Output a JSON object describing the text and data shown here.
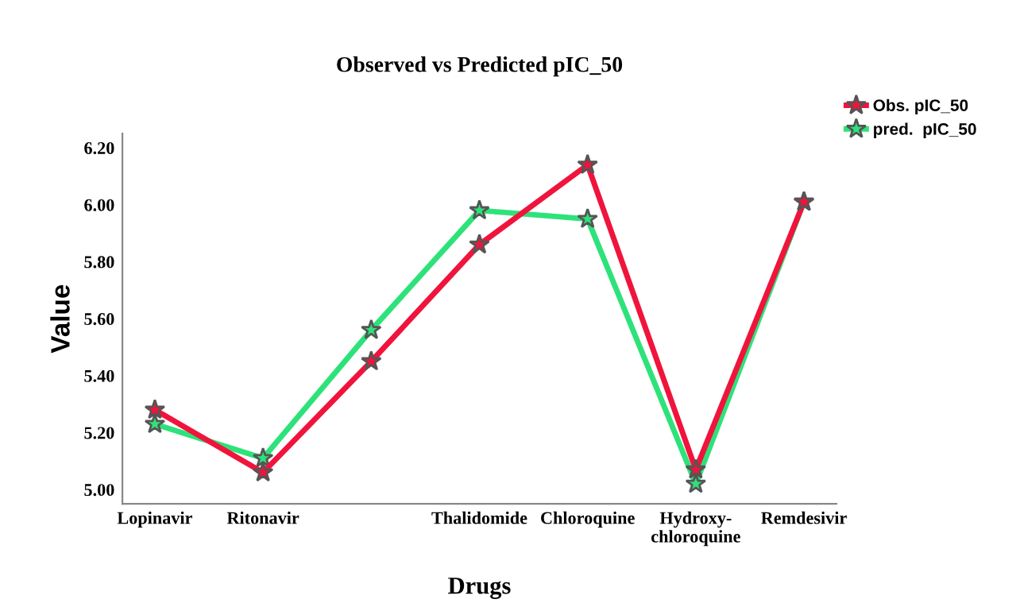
{
  "chart_data": {
    "type": "line",
    "title": "Observed vs Predicted pIC_50",
    "xlabel": "Drugs",
    "ylabel": "Value",
    "categories": [
      "Lopinavir",
      "Ritonavir",
      null,
      "Thalidomide",
      "Chloroquine",
      "Hydroxy-\nchloroquine",
      "Remdesivir"
    ],
    "series": [
      {
        "name": "Obs. pIC_50",
        "color": "#f0143c",
        "values": [
          5.28,
          5.06,
          5.45,
          5.86,
          6.14,
          5.07,
          6.01
        ]
      },
      {
        "name": "pred.  pIC_50",
        "color": "#2ee27a",
        "values": [
          5.23,
          5.11,
          5.56,
          5.98,
          5.95,
          5.02,
          6.01
        ]
      }
    ],
    "ylim": [
      4.95,
      6.25
    ],
    "yticks": [
      {
        "value": 5.0,
        "label": "5.00"
      },
      {
        "value": 5.2,
        "label": "5.20"
      },
      {
        "value": 5.4,
        "label": "5.40"
      },
      {
        "value": 5.6,
        "label": "5.60"
      },
      {
        "value": 5.8,
        "label": "5.80"
      },
      {
        "value": 6.0,
        "label": "6.00"
      },
      {
        "value": 6.2,
        "label": "6.20"
      }
    ],
    "grid": false,
    "legend": "top right",
    "marker": "star",
    "line_style": "solid"
  }
}
